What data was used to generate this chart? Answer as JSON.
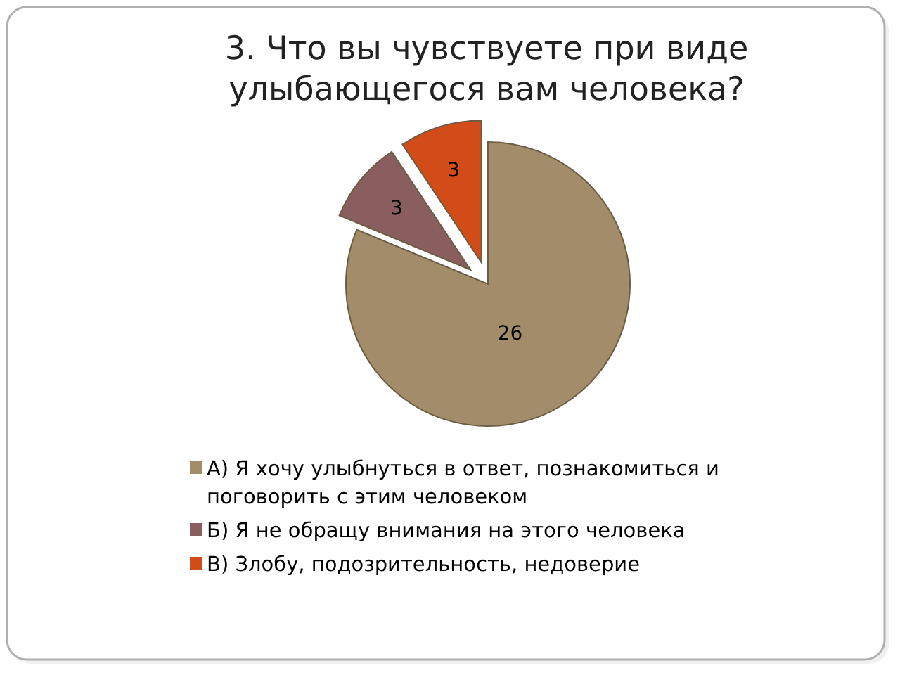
{
  "chart_data": {
    "type": "pie",
    "title": "3. Что вы чувствуете при виде улыбающегося вам человека?",
    "categories": [
      "А) Я хочу улыбнуться в ответ, познакомиться и поговорить с этим человеком",
      "Б) Я не обращу внимания на этого человека",
      "В) Злобу, подозрительность, недоверие"
    ],
    "values": [
      26,
      3,
      3
    ],
    "colors": [
      "#a28c69",
      "#8a5e5e",
      "#d24c19"
    ],
    "data_labels": true,
    "legend": "bottom"
  }
}
